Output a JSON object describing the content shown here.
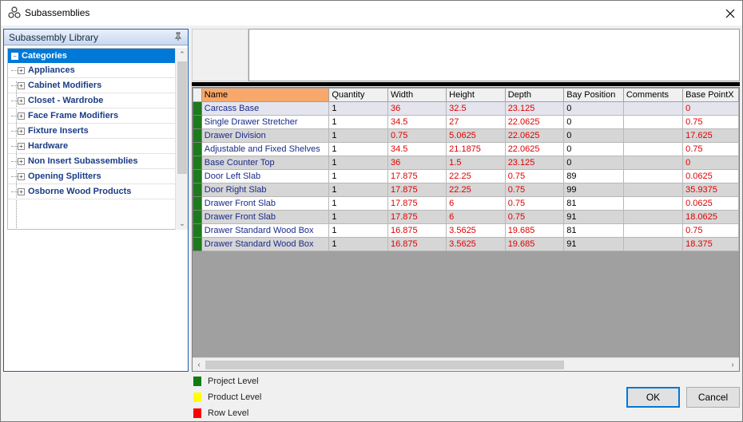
{
  "window": {
    "title": "Subassemblies"
  },
  "library": {
    "title": "Subassembly Library",
    "root": "Categories",
    "items": [
      "Appliances",
      "Cabinet Modifiers",
      "Closet - Wardrobe",
      "Face Frame Modifiers",
      "Fixture Inserts",
      "Hardware",
      "Non Insert Subassemblies",
      "Opening Splitters",
      "Osborne Wood Products"
    ]
  },
  "grid": {
    "columns": [
      "Name",
      "Quantity",
      "Width",
      "Height",
      "Depth",
      "Bay Position",
      "Comments",
      "Base PointX"
    ],
    "rows": [
      [
        "Carcass Base",
        "1",
        "36",
        "32.5",
        "23.125",
        "0",
        "",
        "0"
      ],
      [
        "Single Drawer Stretcher",
        "1",
        "34.5",
        "27",
        "22.0625",
        "0",
        "",
        "0.75"
      ],
      [
        "Drawer Division",
        "1",
        "0.75",
        "5.0625",
        "22.0625",
        "0",
        "",
        "17.625"
      ],
      [
        "Adjustable and Fixed Shelves",
        "1",
        "34.5",
        "21.1875",
        "22.0625",
        "0",
        "",
        "0.75"
      ],
      [
        "Base Counter Top",
        "1",
        "36",
        "1.5",
        "23.125",
        "0",
        "",
        "0"
      ],
      [
        "Door Left Slab",
        "1",
        "17.875",
        "22.25",
        "0.75",
        "89",
        "",
        "0.0625"
      ],
      [
        "Door Right Slab",
        "1",
        "17.875",
        "22.25",
        "0.75",
        "99",
        "",
        "35.9375"
      ],
      [
        "Drawer Front Slab",
        "1",
        "17.875",
        "6",
        "0.75",
        "81",
        "",
        "0.0625"
      ],
      [
        "Drawer Front Slab",
        "1",
        "17.875",
        "6",
        "0.75",
        "91",
        "",
        "18.0625"
      ],
      [
        "Drawer Standard Wood Box",
        "1",
        "16.875",
        "3.5625",
        "19.685",
        "81",
        "",
        "0.75"
      ],
      [
        "Drawer Standard Wood Box",
        "1",
        "16.875",
        "3.5625",
        "19.685",
        "91",
        "",
        "18.375"
      ]
    ]
  },
  "legend": [
    {
      "label": "Project Level",
      "color": "#107c10"
    },
    {
      "label": "Product Level",
      "color": "#ffff00"
    },
    {
      "label": "Row Level",
      "color": "#ff0000"
    }
  ],
  "buttons": {
    "ok": "OK",
    "cancel": "Cancel"
  },
  "colors": {
    "accent": "#0078d7",
    "indicator": "#1c7a1c",
    "header_highlight": "#f7a86a",
    "value_red": "#e00000"
  }
}
